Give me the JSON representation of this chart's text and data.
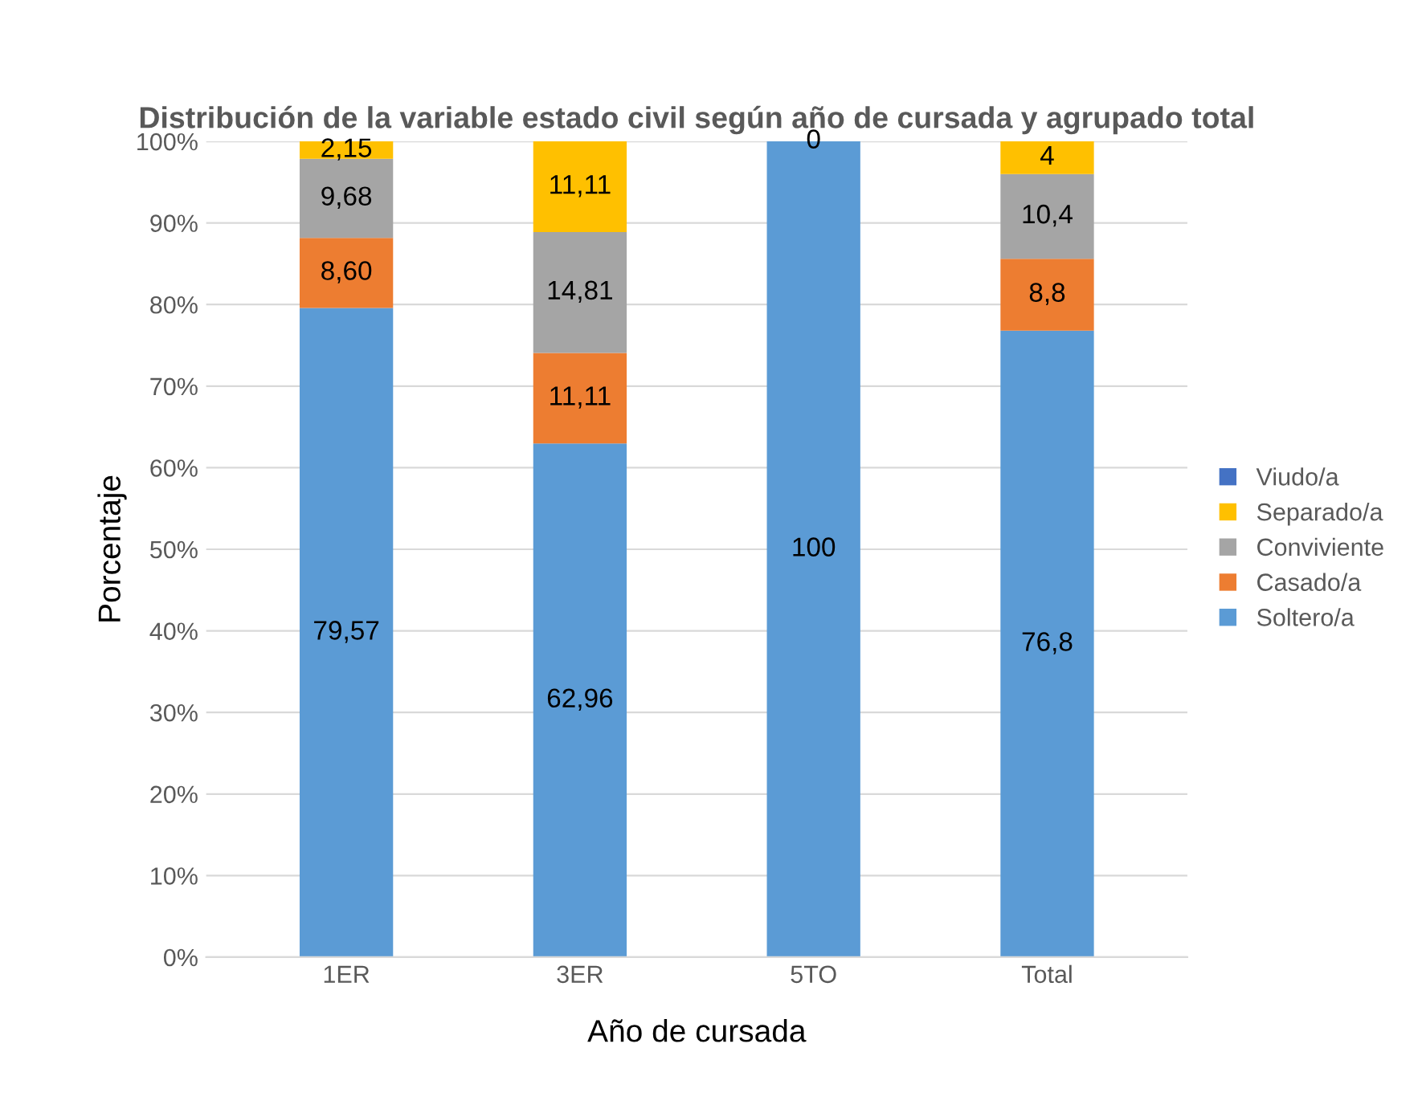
{
  "chart_data": {
    "type": "bar",
    "stacked": true,
    "title": "Distribución de la variable estado civil según año de cursada y agrupado total",
    "xlabel": "Año de cursada",
    "ylabel": "Porcentaje",
    "categories": [
      "1ER",
      "3ER",
      "5TO",
      "Total"
    ],
    "series": [
      {
        "name": "Soltero/a",
        "color": "#5b9bd5",
        "values": [
          79.57,
          62.96,
          100,
          76.8
        ],
        "value_labels": [
          "79,57",
          "62,96",
          "100",
          "76,8"
        ]
      },
      {
        "name": "Casado/a",
        "color": "#ed7d31",
        "values": [
          8.6,
          11.11,
          0,
          8.8
        ],
        "value_labels": [
          "8,60",
          "11,11",
          null,
          "8,8"
        ]
      },
      {
        "name": "Conviviente",
        "color": "#a5a5a5",
        "values": [
          9.68,
          14.81,
          0,
          10.4
        ],
        "value_labels": [
          "9,68",
          "14,81",
          null,
          "10,4"
        ]
      },
      {
        "name": "Separado/a",
        "color": "#ffc000",
        "values": [
          2.15,
          11.11,
          0,
          4
        ],
        "value_labels": [
          "2,15",
          "11,11",
          "0",
          "4"
        ]
      },
      {
        "name": "Viudo/a",
        "color": "#4472c4",
        "values": [
          0,
          0,
          0,
          0
        ],
        "value_labels": [
          null,
          null,
          null,
          null
        ]
      }
    ],
    "ylim": [
      0,
      100
    ],
    "yticks": [
      {
        "value": 0,
        "label": "0%"
      },
      {
        "value": 10,
        "label": "10%"
      },
      {
        "value": 20,
        "label": "20%"
      },
      {
        "value": 30,
        "label": "30%"
      },
      {
        "value": 40,
        "label": "40%"
      },
      {
        "value": 50,
        "label": "50%"
      },
      {
        "value": 60,
        "label": "60%"
      },
      {
        "value": 70,
        "label": "70%"
      },
      {
        "value": 80,
        "label": "80%"
      },
      {
        "value": 90,
        "label": "90%"
      },
      {
        "value": 100,
        "label": "100%"
      }
    ],
    "grid": "y",
    "legend": "right"
  }
}
